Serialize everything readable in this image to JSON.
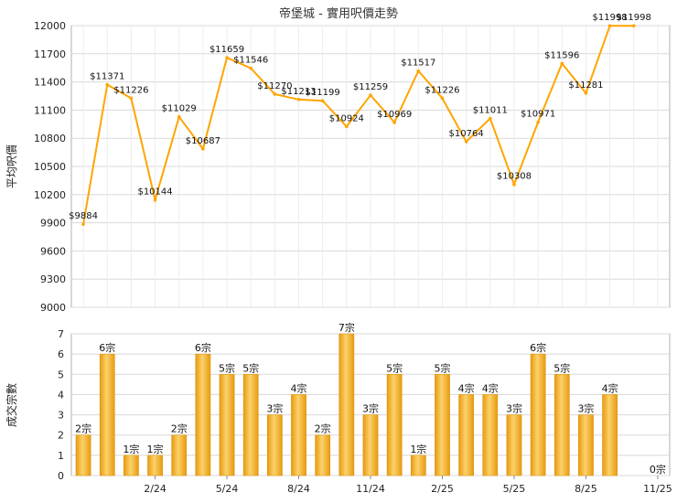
{
  "chart_data": [
    {
      "type": "line",
      "title": "帝堡城 - 實用呎價走勢",
      "ylabel": "平均呎價",
      "ylim": [
        9000,
        12000
      ],
      "yticks": [
        9000,
        9300,
        9600,
        9900,
        10200,
        10500,
        10800,
        11100,
        11400,
        11700,
        12000
      ],
      "grid": true,
      "color": "#ffa500",
      "x": [
        "2023-11",
        "2023-12",
        "2024-01",
        "2024-02",
        "2024-03",
        "2024-04",
        "2024-05",
        "2024-06",
        "2024-07",
        "2024-08",
        "2024-09",
        "2024-10",
        "2024-11",
        "2024-12",
        "2025-01",
        "2025-02",
        "2025-03",
        "2025-04",
        "2025-05",
        "2025-06",
        "2025-07",
        "2025-08",
        "2025-09",
        "2025-10",
        "2025-11"
      ],
      "values": [
        9884,
        11371,
        11226,
        10144,
        11029,
        10687,
        11659,
        11546,
        11270,
        11213,
        11199,
        10924,
        11259,
        10969,
        11517,
        11226,
        10764,
        11011,
        10308,
        10971,
        11596,
        11281,
        11998,
        11998,
        null
      ],
      "labels": [
        "$9884",
        "$11371",
        "$11226",
        "$10144",
        "$11029",
        "$10687",
        "$11659",
        "$11546",
        "$11270",
        "$11213",
        "$11199",
        "$10924",
        "$11259",
        "$10969",
        "$11517",
        "$11226",
        "$10764",
        "$11011",
        "$10308",
        "$10971",
        "$11596",
        "$11281",
        "$11998",
        "$11998",
        ""
      ]
    },
    {
      "type": "bar",
      "ylabel": "成交宗數",
      "ylim": [
        0,
        7
      ],
      "yticks": [
        0,
        1,
        2,
        3,
        4,
        5,
        6,
        7
      ],
      "grid": true,
      "color": "#f4b423",
      "x": [
        "2023-11",
        "2023-12",
        "2024-01",
        "2024-02",
        "2024-03",
        "2024-04",
        "2024-05",
        "2024-06",
        "2024-07",
        "2024-08",
        "2024-09",
        "2024-10",
        "2024-11",
        "2024-12",
        "2025-01",
        "2025-02",
        "2025-03",
        "2025-04",
        "2025-05",
        "2025-06",
        "2025-07",
        "2025-08",
        "2025-09",
        "2025-10",
        "2025-11"
      ],
      "values": [
        2,
        6,
        1,
        1,
        2,
        6,
        5,
        5,
        3,
        4,
        2,
        7,
        3,
        5,
        1,
        5,
        4,
        4,
        3,
        6,
        5,
        3,
        4,
        0,
        0
      ],
      "labels": [
        "2宗",
        "6宗",
        "1宗",
        "1宗",
        "2宗",
        "6宗",
        "5宗",
        "5宗",
        "3宗",
        "4宗",
        "2宗",
        "7宗",
        "3宗",
        "5宗",
        "1宗",
        "5宗",
        "4宗",
        "4宗",
        "3宗",
        "6宗",
        "5宗",
        "3宗",
        "4宗",
        "",
        "0宗"
      ],
      "xtick_labels": [
        "2/24",
        "5/24",
        "8/24",
        "11/24",
        "2/25",
        "5/25",
        "8/25",
        "11/25"
      ],
      "xtick_index": [
        3,
        6,
        9,
        12,
        15,
        18,
        21,
        24
      ]
    }
  ]
}
